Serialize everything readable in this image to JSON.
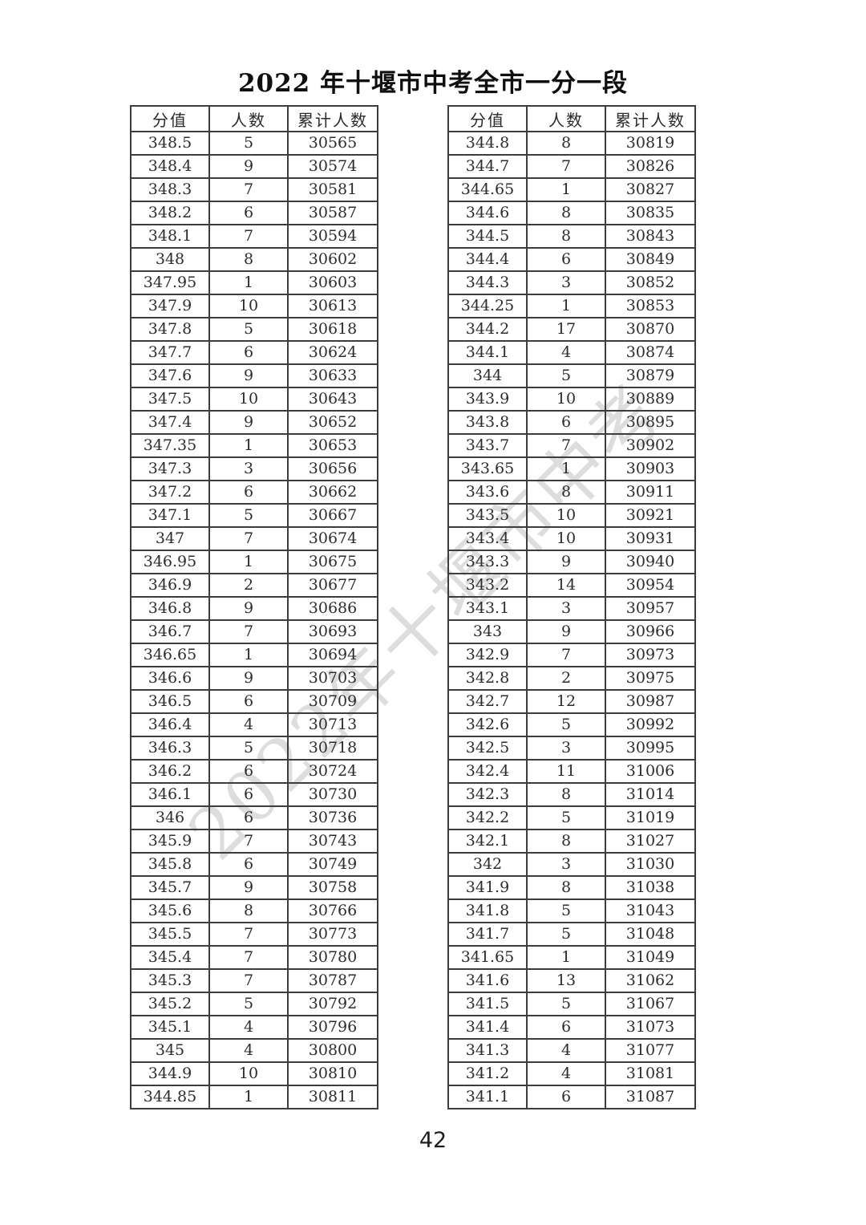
{
  "page": {
    "title": "2022 年十堰市中考全市一分一段",
    "watermark": "2022年十堰市中考",
    "page_number": "42"
  },
  "columns": {
    "score": "分值",
    "count": "人数",
    "cumulative": "累计人数"
  },
  "left_table": {
    "rows": [
      [
        "348.5",
        "5",
        "30565"
      ],
      [
        "348.4",
        "9",
        "30574"
      ],
      [
        "348.3",
        "7",
        "30581"
      ],
      [
        "348.2",
        "6",
        "30587"
      ],
      [
        "348.1",
        "7",
        "30594"
      ],
      [
        "348",
        "8",
        "30602"
      ],
      [
        "347.95",
        "1",
        "30603"
      ],
      [
        "347.9",
        "10",
        "30613"
      ],
      [
        "347.8",
        "5",
        "30618"
      ],
      [
        "347.7",
        "6",
        "30624"
      ],
      [
        "347.6",
        "9",
        "30633"
      ],
      [
        "347.5",
        "10",
        "30643"
      ],
      [
        "347.4",
        "9",
        "30652"
      ],
      [
        "347.35",
        "1",
        "30653"
      ],
      [
        "347.3",
        "3",
        "30656"
      ],
      [
        "347.2",
        "6",
        "30662"
      ],
      [
        "347.1",
        "5",
        "30667"
      ],
      [
        "347",
        "7",
        "30674"
      ],
      [
        "346.95",
        "1",
        "30675"
      ],
      [
        "346.9",
        "2",
        "30677"
      ],
      [
        "346.8",
        "9",
        "30686"
      ],
      [
        "346.7",
        "7",
        "30693"
      ],
      [
        "346.65",
        "1",
        "30694"
      ],
      [
        "346.6",
        "9",
        "30703"
      ],
      [
        "346.5",
        "6",
        "30709"
      ],
      [
        "346.4",
        "4",
        "30713"
      ],
      [
        "346.3",
        "5",
        "30718"
      ],
      [
        "346.2",
        "6",
        "30724"
      ],
      [
        "346.1",
        "6",
        "30730"
      ],
      [
        "346",
        "6",
        "30736"
      ],
      [
        "345.9",
        "7",
        "30743"
      ],
      [
        "345.8",
        "6",
        "30749"
      ],
      [
        "345.7",
        "9",
        "30758"
      ],
      [
        "345.6",
        "8",
        "30766"
      ],
      [
        "345.5",
        "7",
        "30773"
      ],
      [
        "345.4",
        "7",
        "30780"
      ],
      [
        "345.3",
        "7",
        "30787"
      ],
      [
        "345.2",
        "5",
        "30792"
      ],
      [
        "345.1",
        "4",
        "30796"
      ],
      [
        "345",
        "4",
        "30800"
      ],
      [
        "344.9",
        "10",
        "30810"
      ],
      [
        "344.85",
        "1",
        "30811"
      ]
    ]
  },
  "right_table": {
    "rows": [
      [
        "344.8",
        "8",
        "30819"
      ],
      [
        "344.7",
        "7",
        "30826"
      ],
      [
        "344.65",
        "1",
        "30827"
      ],
      [
        "344.6",
        "8",
        "30835"
      ],
      [
        "344.5",
        "8",
        "30843"
      ],
      [
        "344.4",
        "6",
        "30849"
      ],
      [
        "344.3",
        "3",
        "30852"
      ],
      [
        "344.25",
        "1",
        "30853"
      ],
      [
        "344.2",
        "17",
        "30870"
      ],
      [
        "344.1",
        "4",
        "30874"
      ],
      [
        "344",
        "5",
        "30879"
      ],
      [
        "343.9",
        "10",
        "30889"
      ],
      [
        "343.8",
        "6",
        "30895"
      ],
      [
        "343.7",
        "7",
        "30902"
      ],
      [
        "343.65",
        "1",
        "30903"
      ],
      [
        "343.6",
        "8",
        "30911"
      ],
      [
        "343.5",
        "10",
        "30921"
      ],
      [
        "343.4",
        "10",
        "30931"
      ],
      [
        "343.3",
        "9",
        "30940"
      ],
      [
        "343.2",
        "14",
        "30954"
      ],
      [
        "343.1",
        "3",
        "30957"
      ],
      [
        "343",
        "9",
        "30966"
      ],
      [
        "342.9",
        "7",
        "30973"
      ],
      [
        "342.8",
        "2",
        "30975"
      ],
      [
        "342.7",
        "12",
        "30987"
      ],
      [
        "342.6",
        "5",
        "30992"
      ],
      [
        "342.5",
        "3",
        "30995"
      ],
      [
        "342.4",
        "11",
        "31006"
      ],
      [
        "342.3",
        "8",
        "31014"
      ],
      [
        "342.2",
        "5",
        "31019"
      ],
      [
        "342.1",
        "8",
        "31027"
      ],
      [
        "342",
        "3",
        "31030"
      ],
      [
        "341.9",
        "8",
        "31038"
      ],
      [
        "341.8",
        "5",
        "31043"
      ],
      [
        "341.7",
        "5",
        "31048"
      ],
      [
        "341.65",
        "1",
        "31049"
      ],
      [
        "341.6",
        "13",
        "31062"
      ],
      [
        "341.5",
        "5",
        "31067"
      ],
      [
        "341.4",
        "6",
        "31073"
      ],
      [
        "341.3",
        "4",
        "31077"
      ],
      [
        "341.2",
        "4",
        "31081"
      ],
      [
        "341.1",
        "6",
        "31087"
      ]
    ]
  }
}
